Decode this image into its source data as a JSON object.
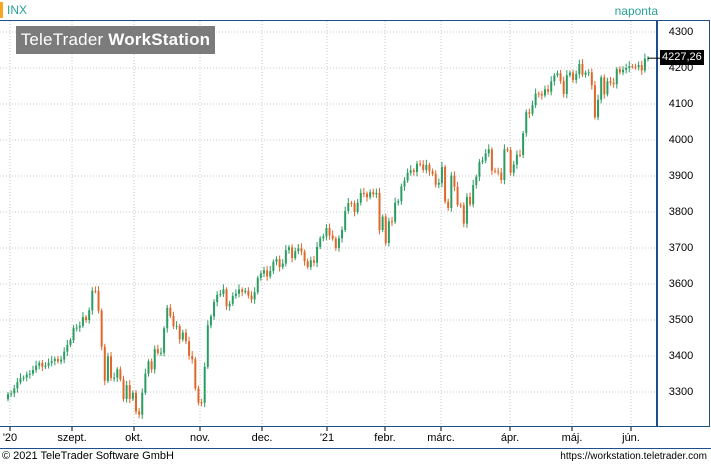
{
  "header": {
    "symbol": "INX",
    "period": "naponta"
  },
  "logo": {
    "light": "TeleTrader ",
    "bold": "WorkStation"
  },
  "price_axis": {
    "labels": [
      "4300",
      "4200",
      "4100",
      "4000",
      "3900",
      "3800",
      "3700",
      "3600",
      "3500",
      "3400",
      "3300"
    ],
    "last_price": "4227,26"
  },
  "time_axis": {
    "labels": [
      "'20",
      "szept.",
      "okt.",
      "nov.",
      "dec.",
      "'21",
      "febr.",
      "márc.",
      "ápr.",
      "máj.",
      "jún."
    ]
  },
  "footer": {
    "copyright": "© 2021  TeleTrader Software GmbH",
    "url": "https://workstation.teletrader.com"
  },
  "colors": {
    "up": "#2a9d62",
    "down": "#e0672a",
    "grid": "#c8c8c8",
    "frame": "#1f4e8c",
    "accent": "#f5a623"
  },
  "chart_data": {
    "type": "candlestick",
    "title": "INX",
    "ylim": [
      3210,
      4340
    ],
    "ticks": [
      "'20",
      "szept.",
      "okt.",
      "nov.",
      "dec.",
      "'21",
      "febr.",
      "márc.",
      "ápr.",
      "máj.",
      "jún."
    ],
    "close": [
      3294,
      3296,
      3310,
      3327,
      3338,
      3340,
      3349,
      3351,
      3361,
      3373,
      3381,
      3370,
      3373,
      3381,
      3386,
      3392,
      3385,
      3390,
      3412,
      3431,
      3444,
      3478,
      3479,
      3484,
      3508,
      3500,
      3527,
      3581,
      3580,
      3526,
      3426,
      3331,
      3399,
      3339,
      3340,
      3363,
      3335,
      3281,
      3319,
      3281,
      3298,
      3246,
      3237,
      3298,
      3351,
      3385,
      3363,
      3419,
      3408,
      3409,
      3477,
      3534,
      3511,
      3483,
      3483,
      3446,
      3465,
      3441,
      3400,
      3391,
      3310,
      3271,
      3270,
      3370,
      3485,
      3510,
      3550,
      3570,
      3572,
      3585,
      3538,
      3545,
      3567,
      3573,
      3585,
      3578,
      3581,
      3568,
      3557,
      3577,
      3617,
      3629,
      3638,
      3621,
      3636,
      3662,
      3669,
      3647,
      3657,
      3694,
      3702,
      3672,
      3691,
      3699,
      3690,
      3663,
      3647,
      3666,
      3659,
      3703,
      3727,
      3732,
      3756,
      3735,
      3726,
      3700,
      3727,
      3750,
      3803,
      3825,
      3824,
      3800,
      3826,
      3853,
      3851,
      3841,
      3855,
      3849,
      3853,
      3750,
      3787,
      3714,
      3774,
      3773,
      3826,
      3830,
      3871,
      3887,
      3909,
      3916,
      3911,
      3934,
      3932,
      3917,
      3931,
      3913,
      3906,
      3876,
      3881,
      3925,
      3829,
      3811,
      3901,
      3870,
      3820,
      3819,
      3768,
      3842,
      3821,
      3875,
      3898,
      3939,
      3943,
      3963,
      3974,
      3915,
      3913,
      3910,
      3889,
      3974,
      3972,
      3909,
      3932,
      3959,
      3958,
      4019,
      4077,
      4073,
      4097,
      4129,
      4128,
      4124,
      4141,
      4134,
      4163,
      4180,
      4185,
      4164,
      4128,
      4180,
      4187,
      4167,
      4183,
      4211,
      4181,
      4187,
      4188,
      4152,
      4063,
      4112,
      4174,
      4127,
      4163,
      4159,
      4155,
      4197,
      4188,
      4195,
      4200,
      4205,
      4204,
      4203,
      4208,
      4193,
      4226,
      4227
    ],
    "open": [
      3280,
      3294,
      3296,
      3310,
      3327,
      3338,
      3340,
      3349,
      3351,
      3361,
      3373,
      3381,
      3370,
      3373,
      3381,
      3386,
      3392,
      3385,
      3390,
      3412,
      3431,
      3444,
      3478,
      3479,
      3484,
      3508,
      3500,
      3527,
      3581,
      3580,
      3526,
      3426,
      3331,
      3399,
      3339,
      3340,
      3363,
      3335,
      3281,
      3319,
      3281,
      3298,
      3246,
      3237,
      3298,
      3351,
      3385,
      3363,
      3419,
      3408,
      3409,
      3477,
      3534,
      3511,
      3483,
      3483,
      3446,
      3465,
      3441,
      3400,
      3391,
      3310,
      3271,
      3270,
      3370,
      3485,
      3510,
      3550,
      3570,
      3572,
      3585,
      3538,
      3545,
      3567,
      3573,
      3585,
      3578,
      3581,
      3568,
      3557,
      3577,
      3617,
      3629,
      3638,
      3621,
      3636,
      3662,
      3669,
      3647,
      3657,
      3694,
      3702,
      3672,
      3691,
      3699,
      3690,
      3663,
      3647,
      3666,
      3659,
      3703,
      3727,
      3732,
      3756,
      3735,
      3726,
      3700,
      3727,
      3750,
      3803,
      3825,
      3824,
      3800,
      3826,
      3853,
      3851,
      3841,
      3855,
      3849,
      3853,
      3750,
      3787,
      3714,
      3774,
      3773,
      3826,
      3830,
      3871,
      3887,
      3909,
      3916,
      3911,
      3934,
      3932,
      3917,
      3931,
      3913,
      3906,
      3876,
      3881,
      3925,
      3829,
      3811,
      3901,
      3870,
      3820,
      3819,
      3768,
      3842,
      3821,
      3875,
      3898,
      3939,
      3943,
      3963,
      3974,
      3915,
      3913,
      3910,
      3889,
      3974,
      3972,
      3909,
      3932,
      3959,
      3958,
      4019,
      4077,
      4073,
      4097,
      4129,
      4128,
      4124,
      4141,
      4134,
      4163,
      4180,
      4185,
      4164,
      4128,
      4180,
      4187,
      4167,
      4183,
      4211,
      4181,
      4187,
      4188,
      4152,
      4063,
      4112,
      4174,
      4127,
      4163,
      4159,
      4155,
      4197,
      4188,
      4195,
      4200,
      4205,
      4204,
      4203,
      4208,
      4193,
      4226
    ]
  }
}
